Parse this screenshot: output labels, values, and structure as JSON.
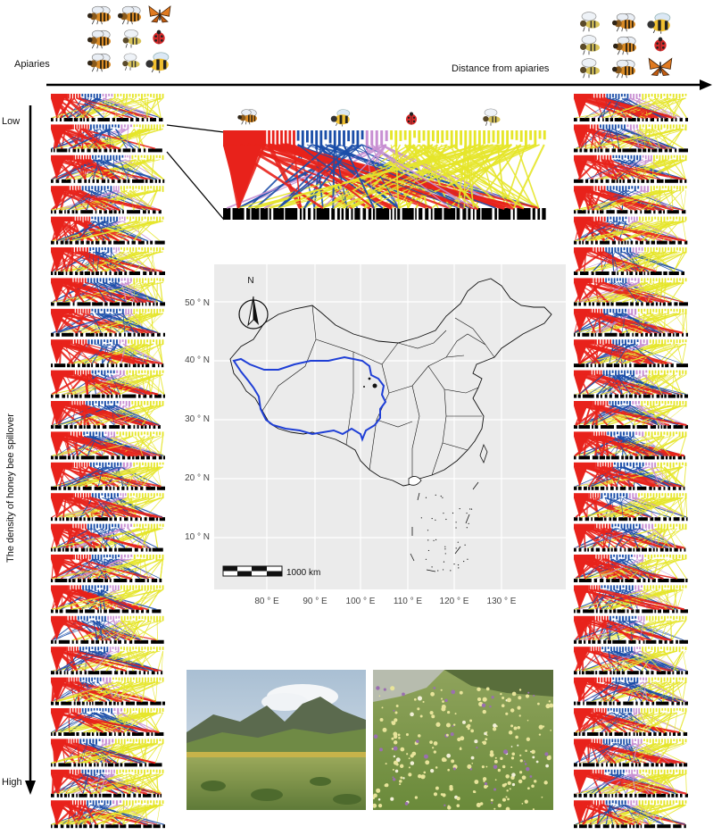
{
  "labels": {
    "apiaries": "Apiaries",
    "distance": "Distance from apiaries",
    "density": "The density of honey bee spillover",
    "low": "Low",
    "high": "High"
  },
  "map": {
    "lat_ticks": [
      "50 ° N",
      "40 ° N",
      "30 ° N",
      "20 ° N",
      "10 ° N"
    ],
    "lon_ticks": [
      "80 ° E",
      "90 ° E",
      "100 ° E",
      "110 ° E",
      "120 ° E",
      "130 ° E"
    ],
    "north_label": "N",
    "scale_label": "1000 km",
    "plateau_color": "#1f3fd6"
  },
  "network": {
    "group_colors": [
      "#e8221b",
      "#1b4ea8",
      "#c88fd2",
      "#e6e62a"
    ],
    "insects": [
      "honey-bee-icon",
      "bumble-bee-icon",
      "ladybird-icon",
      "wasp-icon"
    ]
  },
  "photos": [
    "meadow-photo",
    "flower-slope-photo"
  ]
}
